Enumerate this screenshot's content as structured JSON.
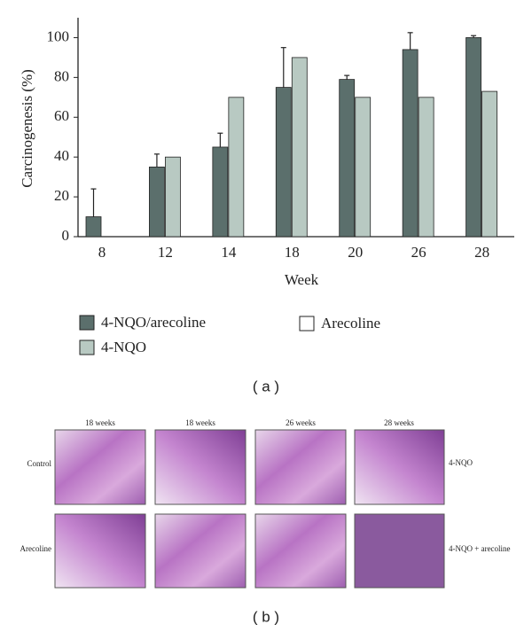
{
  "chart_data": {
    "type": "bar",
    "y_label": "Carcinogenesis (%)",
    "x_label": "Week",
    "categories": [
      "8",
      "12",
      "14",
      "18",
      "20",
      "26",
      "28"
    ],
    "series": [
      {
        "name": "4-NQO/arecoline",
        "color": "#5b6f6c",
        "values": [
          10,
          35,
          45,
          75,
          79,
          94,
          100
        ],
        "errors": [
          14,
          6.5,
          7,
          20,
          2,
          8.5,
          1
        ]
      },
      {
        "name": "4-NQO",
        "color": "#b8c9c2",
        "values": [
          0,
          40,
          70,
          90,
          70,
          70,
          73
        ]
      },
      {
        "name": "Arecoline",
        "color": "#ffffff",
        "values": [
          0,
          0,
          0,
          0,
          0,
          0,
          0
        ]
      }
    ],
    "ylim": [
      0,
      110
    ],
    "yticks": [
      0,
      20,
      40,
      60,
      80,
      100
    ],
    "grid": false,
    "legend": "bottom",
    "error_bars": "upper"
  },
  "figure": {
    "panel_a": "( a )",
    "panel_b": "( b )",
    "column_labels": [
      "18 weeks",
      "18 weeks",
      "26 weeks",
      "28 weeks"
    ],
    "row_labels_left": [
      "Control",
      "Arecoline"
    ],
    "row_labels_right": [
      "4-NQO",
      "4-NQO + arecoline"
    ]
  }
}
